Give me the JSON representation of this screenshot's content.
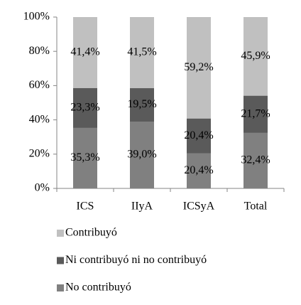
{
  "chart_data": {
    "type": "stacked_bar",
    "categories": [
      "ICS",
      "IIyA",
      "ICSyA",
      "Total"
    ],
    "series": [
      {
        "name": "No contribuyó",
        "color": "#808080",
        "values": [
          35.3,
          39.0,
          20.4,
          32.4
        ],
        "value_labels": [
          "35,3%",
          "39,0%",
          "20,4%",
          "32,4%"
        ]
      },
      {
        "name": "Ni contribuyó ni no contribuyó",
        "color": "#5a5a5a",
        "values": [
          23.3,
          19.5,
          20.4,
          21.7
        ],
        "value_labels": [
          "23,3%",
          "19,5%",
          "20,4%",
          "21,7%"
        ]
      },
      {
        "name": "Contribuyó",
        "color": "#c0c0c0",
        "values": [
          41.4,
          41.5,
          59.2,
          45.9
        ],
        "value_labels": [
          "41,4%",
          "41,5%",
          "59,2%",
          "45,9%"
        ]
      }
    ],
    "ylim": [
      0,
      100
    ],
    "yticks": [
      {
        "value": 0,
        "label": "0%"
      },
      {
        "value": 20,
        "label": "20%"
      },
      {
        "value": 40,
        "label": "40%"
      },
      {
        "value": 60,
        "label": "60%"
      },
      {
        "value": 80,
        "label": "80%"
      },
      {
        "value": 100,
        "label": "100%"
      }
    ],
    "grid": false
  }
}
